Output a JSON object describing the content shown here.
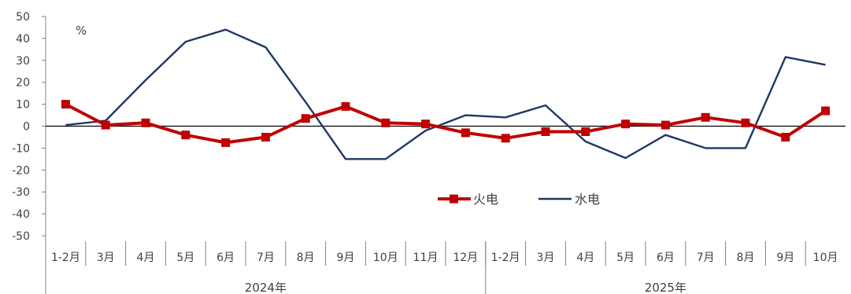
{
  "chart_data": {
    "type": "line",
    "unit_label": "%",
    "ylim": [
      -50,
      50
    ],
    "y_ticks": [
      "50",
      "40",
      "30",
      "20",
      "10",
      "0",
      "-10",
      "-20",
      "-30",
      "-40",
      "-50"
    ],
    "categories": [
      "1-2月",
      "3月",
      "4月",
      "5月",
      "6月",
      "7月",
      "8月",
      "9月",
      "10月",
      "11月",
      "12月",
      "1-2月",
      "3月",
      "4月",
      "5月",
      "6月",
      "7月",
      "8月",
      "9月",
      "10月"
    ],
    "groups": [
      {
        "label": "2024年",
        "count": 11
      },
      {
        "label": "2025年",
        "count": 9
      }
    ],
    "series": [
      {
        "name": "火电",
        "color": "#C00000",
        "marker": "square",
        "values": [
          10,
          0.5,
          1.5,
          -4,
          -7.5,
          -5,
          3.5,
          9,
          1.5,
          1,
          -3,
          -5.5,
          -2.5,
          -2.5,
          1,
          0.5,
          4,
          1.5,
          -5,
          7
        ]
      },
      {
        "name": "水电",
        "color": "#1F3864",
        "marker": "none",
        "values": [
          0.5,
          2.5,
          21,
          38.5,
          44,
          36,
          11,
          -15,
          -15,
          -2,
          5,
          4,
          9.5,
          -7,
          -14.5,
          -4,
          -10,
          -10,
          31.5,
          28
        ]
      }
    ],
    "legend_position": "inside-center-lower",
    "grid": false
  }
}
